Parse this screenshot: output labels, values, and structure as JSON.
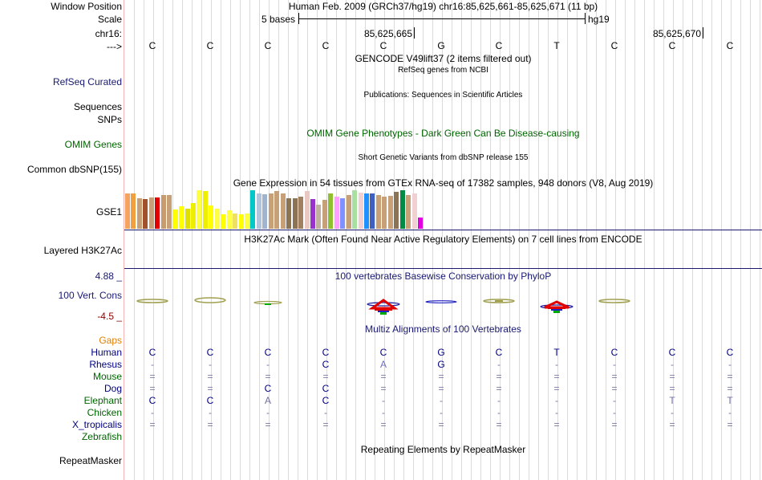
{
  "labels": {
    "window_position": "Window Position",
    "scale": "Scale",
    "chrom": "chr16:",
    "strand": "--->",
    "refseq": "RefSeq Curated",
    "sequences": "Sequences",
    "snps": "SNPs",
    "omim": "OMIM Genes",
    "dbsnp": "Common dbSNP(155)",
    "gse": "GSE1",
    "h3k27ac": "Layered H3K27Ac",
    "cons_max": "4.88 _",
    "cons": "100 Vert. Cons",
    "cons_min": "-4.5 _",
    "gaps": "Gaps",
    "repeatmasker": "RepeatMasker"
  },
  "header": {
    "assembly_position": "Human Feb. 2009 (GRCh37/hg19)   chr16:85,625,661-85,625,671 (11 bp)",
    "scale_text": "5 bases",
    "scale_db": "hg19",
    "coord1": "85,625,665",
    "coord2": "85,625,670"
  },
  "tracks": {
    "gencode": "GENCODE V49lift37 (2 items filtered out)",
    "refseq": "RefSeq genes from NCBI",
    "publications": "Publications: Sequences in Scientific Articles",
    "omim": "OMIM Gene Phenotypes - Dark Green Can Be Disease-causing",
    "dbsnp": "Short Genetic Variants from dbSNP release 155",
    "gtex": "Gene Expression in 54 tissues from GTEx RNA-seq of 17382 samples, 948 donors (V8, Aug 2019)",
    "h3k27ac": "H3K27Ac Mark (Often Found Near Active Regulatory Elements) on 7 cell lines from ENCODE",
    "phylop": "100 vertebrates Basewise Conservation by PhyloP",
    "multiz": "Multiz Alignments of 100 Vertebrates",
    "repeatmasker": "Repeating Elements by RepeatMasker"
  },
  "sequence": [
    "C",
    "C",
    "C",
    "C",
    "C",
    "G",
    "C",
    "T",
    "C",
    "C",
    "C"
  ],
  "gtex_expression": [
    {
      "value": 0.92,
      "color": "#f4a460"
    },
    {
      "value": 0.92,
      "color": "#f0a040"
    },
    {
      "value": 0.8,
      "color": "#c8a078"
    },
    {
      "value": 0.78,
      "color": "#a0522d"
    },
    {
      "value": 0.82,
      "color": "#c8a078"
    },
    {
      "value": 0.82,
      "color": "#e00000"
    },
    {
      "value": 0.88,
      "color": "#c89a70"
    },
    {
      "value": 0.88,
      "color": "#c8a078"
    },
    {
      "value": 0.5,
      "color": "#ffff00"
    },
    {
      "value": 0.58,
      "color": "#ffff00"
    },
    {
      "value": 0.52,
      "color": "#e0e000"
    },
    {
      "value": 0.66,
      "color": "#eeee00"
    },
    {
      "value": 1.0,
      "color": "#ffff44"
    },
    {
      "value": 0.98,
      "color": "#eeee00"
    },
    {
      "value": 0.6,
      "color": "#ffff00"
    },
    {
      "value": 0.52,
      "color": "#ffff44"
    },
    {
      "value": 0.38,
      "color": "#ffff00"
    },
    {
      "value": 0.48,
      "color": "#ffff44"
    },
    {
      "value": 0.4,
      "color": "#f0e060"
    },
    {
      "value": 0.38,
      "color": "#ffff00"
    },
    {
      "value": 0.4,
      "color": "#ffff44"
    },
    {
      "value": 1.0,
      "color": "#00c8c8"
    },
    {
      "value": 0.92,
      "color": "#b0c4de"
    },
    {
      "value": 0.9,
      "color": "#a0b4d0"
    },
    {
      "value": 0.92,
      "color": "#c8a078"
    },
    {
      "value": 0.98,
      "color": "#c8a078"
    },
    {
      "value": 0.92,
      "color": "#c8a078"
    },
    {
      "value": 0.8,
      "color": "#8b7355"
    },
    {
      "value": 0.8,
      "color": "#8b7355"
    },
    {
      "value": 0.84,
      "color": "#a08060"
    },
    {
      "value": 0.98,
      "color": "#e8c8c0"
    },
    {
      "value": 0.78,
      "color": "#9932cc"
    },
    {
      "value": 0.62,
      "color": "#c0b0a0"
    },
    {
      "value": 0.74,
      "color": "#c8a078"
    },
    {
      "value": 0.92,
      "color": "#90c030"
    },
    {
      "value": 0.84,
      "color": "#ffa0ff"
    },
    {
      "value": 0.8,
      "color": "#8090ff"
    },
    {
      "value": 0.88,
      "color": "#c8a078"
    },
    {
      "value": 1.0,
      "color": "#a8e0a0"
    },
    {
      "value": 0.94,
      "color": "#f0d0d0"
    },
    {
      "value": 0.92,
      "color": "#1e90ff"
    },
    {
      "value": 0.92,
      "color": "#4060c0"
    },
    {
      "value": 0.88,
      "color": "#c8a078"
    },
    {
      "value": 0.84,
      "color": "#c8a078"
    },
    {
      "value": 0.86,
      "color": "#c8a078"
    },
    {
      "value": 0.96,
      "color": "#8b7355"
    },
    {
      "value": 1.0,
      "color": "#008b45"
    },
    {
      "value": 0.88,
      "color": "#c8a078"
    },
    {
      "value": 0.92,
      "color": "#f0d0d0"
    },
    {
      "value": 0.3,
      "color": "#e000e0"
    }
  ],
  "alignment": [
    {
      "species": "Human",
      "color": "#000080",
      "cells": [
        "C",
        "C",
        "C",
        "C",
        "C",
        "G",
        "C",
        "T",
        "C",
        "C",
        "C"
      ]
    },
    {
      "species": "Rhesus",
      "color": "#000080",
      "cells": [
        "-",
        "-",
        "-",
        "C",
        "A",
        "G",
        "-",
        "-",
        "-",
        "-",
        "-"
      ]
    },
    {
      "species": "Mouse",
      "color": "#006400",
      "cells": [
        "=",
        "=",
        "=",
        "=",
        "=",
        "=",
        "=",
        "=",
        "=",
        "=",
        "="
      ]
    },
    {
      "species": "Dog",
      "color": "#000080",
      "cells": [
        "=",
        "=",
        "C",
        "C",
        "=",
        "=",
        "=",
        "=",
        "=",
        "=",
        "="
      ]
    },
    {
      "species": "Elephant",
      "color": "#006400",
      "cells": [
        "C",
        "C",
        "A",
        "C",
        "-",
        "-",
        "-",
        "-",
        "-",
        "T",
        "T"
      ]
    },
    {
      "species": "Chicken",
      "color": "#006400",
      "cells": [
        "-",
        "-",
        "-",
        "-",
        "-",
        "-",
        "-",
        "-",
        "-",
        "-",
        "-"
      ]
    },
    {
      "species": "X_tropicalis",
      "color": "#000080",
      "cells": [
        "=",
        "=",
        "=",
        "=",
        "=",
        "=",
        "=",
        "=",
        "=",
        "=",
        "="
      ]
    },
    {
      "species": "Zebrafish",
      "color": "#006400",
      "cells": [
        "",
        "",
        "",
        "",
        "",
        "",
        "",
        "",
        "",
        "",
        ""
      ]
    }
  ]
}
